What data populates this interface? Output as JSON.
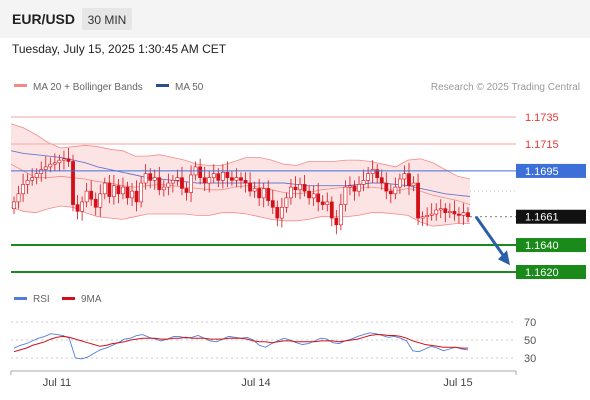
{
  "header": {
    "symbol": "EUR/USD",
    "timeframe": "30 MIN",
    "datetime": "Tuesday, July 15, 2025 1:30:45 AM CET"
  },
  "legend": {
    "bollinger_label": "MA 20 + Bollinger Bands",
    "ma50_label": "MA 50",
    "copyright": "Research © 2025 Trading Central",
    "rsi_label": "RSI",
    "rsi_ma_label": "9MA"
  },
  "colors": {
    "candle": "#d3101a",
    "bollinger": "#f28b8b",
    "bollinger_fill": "#fde4e4",
    "ma50": "#6a76c8",
    "resistance": "#e53935",
    "pivot": "#3d6fd8",
    "support": "#1a8a1a",
    "current": "#111111",
    "arrow": "#2a5ea8",
    "rsi": "#4f7fd8",
    "rsi_ma": "#d3101a"
  },
  "chart_data": {
    "type": "candlestick",
    "x_ticks": [
      "Jul 11",
      "Jul 14",
      "Jul 15"
    ],
    "y_range": [
      1.162,
      1.1745
    ],
    "levels": [
      {
        "label": "1.1735",
        "value": 1.1735,
        "kind": "resistance"
      },
      {
        "label": "1.1715",
        "value": 1.1715,
        "kind": "resistance"
      },
      {
        "label": "1.1695",
        "value": 1.1695,
        "kind": "pivot"
      },
      {
        "label": "1.1661",
        "value": 1.1661,
        "kind": "current"
      },
      {
        "label": "1.1640",
        "value": 1.164,
        "kind": "support"
      },
      {
        "label": "1.1620",
        "value": 1.162,
        "kind": "support"
      }
    ],
    "arrow": {
      "from": 1.1661,
      "to": 1.1625
    },
    "candles_close": [
      1.1672,
      1.1678,
      1.1685,
      1.1688,
      1.169,
      1.1693,
      1.1696,
      1.1698,
      1.17,
      1.1701,
      1.1703,
      1.1704,
      1.1702,
      1.167,
      1.1665,
      1.1672,
      1.168,
      1.1674,
      1.1668,
      1.1678,
      1.1686,
      1.1676,
      1.1684,
      1.1678,
      1.1683,
      1.1675,
      1.168,
      1.1672,
      1.1686,
      1.1693,
      1.1688,
      1.169,
      1.1681,
      1.1683,
      1.1686,
      1.1688,
      1.169,
      1.1682,
      1.1679,
      1.1692,
      1.1698,
      1.169,
      1.1686,
      1.169,
      1.1693,
      1.1688,
      1.1694,
      1.169,
      1.1688,
      1.169,
      1.1688,
      1.1686,
      1.168,
      1.1682,
      1.1675,
      1.1682,
      1.1673,
      1.1668,
      1.166,
      1.1668,
      1.1675,
      1.1683,
      1.1681,
      1.1685,
      1.168,
      1.1675,
      1.1678,
      1.1672,
      1.167,
      1.1672,
      1.166,
      1.1655,
      1.167,
      1.1683,
      1.1684,
      1.168,
      1.1685,
      1.1688,
      1.1693,
      1.1696,
      1.169,
      1.1686,
      1.168,
      1.1678,
      1.1683,
      1.1689,
      1.1693,
      1.1684,
      1.1686,
      1.166,
      1.1661,
      1.1662,
      1.1663,
      1.1666,
      1.1667,
      1.1664,
      1.1665,
      1.1663,
      1.1662,
      1.1664,
      1.1661
    ],
    "bollinger_upper": [
      1.173,
      1.1727,
      1.1722,
      1.1716,
      1.1712,
      1.1713,
      1.1714,
      1.1713,
      1.1711,
      1.171,
      1.1706,
      1.1706,
      1.1707,
      1.1705,
      1.1703,
      1.17,
      1.1699,
      1.1699,
      1.1702,
      1.1705,
      1.1705,
      1.1703,
      1.17,
      1.1699,
      1.1702,
      1.1702,
      1.1702,
      1.1703,
      1.1703,
      1.1702,
      1.17,
      1.1698,
      1.1703,
      1.1704,
      1.1701,
      1.1696,
      1.1691,
      1.1689
    ],
    "bollinger_lower": [
      1.1668,
      1.1665,
      1.1664,
      1.1667,
      1.1669,
      1.1668,
      1.1664,
      1.1661,
      1.166,
      1.1659,
      1.1661,
      1.1663,
      1.1663,
      1.1663,
      1.1663,
      1.1662,
      1.1662,
      1.1664,
      1.1664,
      1.1663,
      1.1661,
      1.1659,
      1.1658,
      1.1658,
      1.1659,
      1.1661,
      1.1661,
      1.1661,
      1.1662,
      1.1664,
      1.1664,
      1.1663,
      1.1662,
      1.1657,
      1.1654,
      1.1655,
      1.1656,
      1.1656
    ],
    "bollinger_mid": [
      1.17,
      1.1695,
      1.169,
      1.169,
      1.1691,
      1.169,
      1.1689,
      1.1687,
      1.1686,
      1.1684,
      1.1683,
      1.1684,
      1.1685,
      1.1684,
      1.1683,
      1.1682,
      1.1681,
      1.1681,
      1.1683,
      1.1684,
      1.1683,
      1.1681,
      1.1679,
      1.1678,
      1.1679,
      1.1681,
      1.1682,
      1.1683,
      1.1682,
      1.1683,
      1.1682,
      1.168,
      1.1682,
      1.168,
      1.1677,
      1.1675,
      1.1673,
      1.167
    ],
    "ma50": [
      1.171,
      1.1708,
      1.1707,
      1.1706,
      1.1705,
      1.1703,
      1.1701,
      1.1698,
      1.1696,
      1.1694,
      1.1692,
      1.169,
      1.1689,
      1.1688,
      1.1687,
      1.1686,
      1.1686,
      1.1686,
      1.1686,
      1.1686,
      1.1686,
      1.1686,
      1.1686,
      1.1685,
      1.1684,
      1.1684,
      1.1684,
      1.1684,
      1.1685,
      1.1686,
      1.1686,
      1.1685,
      1.1684,
      1.1682,
      1.168,
      1.1678,
      1.1677,
      1.1676
    ],
    "rsi": {
      "range": [
        20,
        80
      ],
      "ticks": [
        70,
        50,
        30
      ],
      "rsi_values": [
        41,
        44,
        46,
        49,
        52,
        54,
        57,
        56,
        55,
        52,
        30,
        29,
        31,
        35,
        39,
        41,
        44,
        47,
        51,
        52,
        55,
        56,
        53,
        51,
        49,
        51,
        54,
        54,
        52,
        53,
        55,
        52,
        49,
        48,
        51,
        54,
        53,
        52,
        53,
        50,
        44,
        42,
        46,
        49,
        52,
        50,
        47,
        45,
        46,
        49,
        52,
        51,
        47,
        46,
        49,
        51,
        54,
        56,
        58,
        57,
        55,
        53,
        54,
        52,
        49,
        38,
        37,
        40,
        43,
        41,
        38,
        40,
        42,
        40,
        39
      ],
      "ma_values": [
        37,
        39,
        41,
        44,
        46,
        48,
        51,
        53,
        54,
        53,
        51,
        49,
        47,
        45,
        43,
        44,
        46,
        47,
        48,
        50,
        51,
        52,
        52,
        52,
        51,
        51,
        52,
        52,
        53,
        52,
        52,
        52,
        51,
        51,
        51,
        52,
        52,
        52,
        51,
        49,
        48,
        48,
        47,
        48,
        49,
        49,
        48,
        48,
        48,
        48,
        49,
        49,
        49,
        48,
        49,
        50,
        51,
        53,
        55,
        56,
        56,
        55,
        55,
        54,
        52,
        49,
        47,
        45,
        44,
        43,
        42,
        42,
        42,
        41,
        41
      ]
    }
  }
}
